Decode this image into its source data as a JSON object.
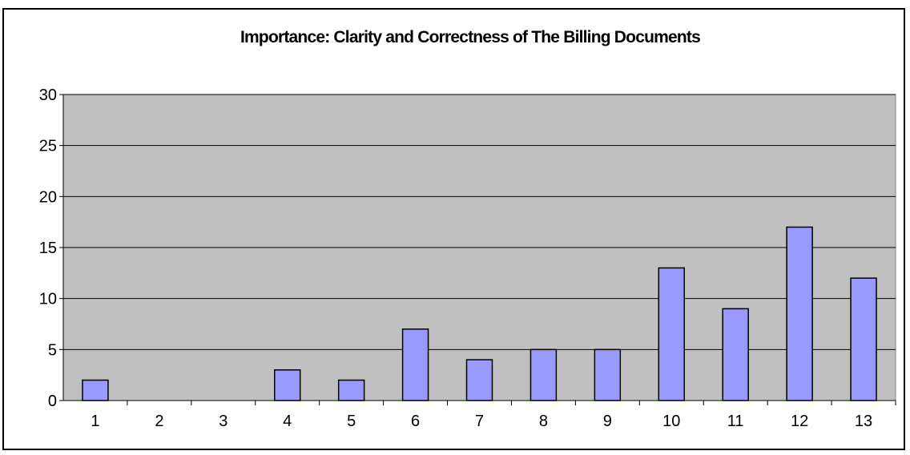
{
  "chart_data": {
    "type": "bar",
    "title": "Importance: Clarity and Correctness of The Billing Documents",
    "xlabel": "",
    "ylabel": "",
    "categories": [
      "1",
      "2",
      "3",
      "4",
      "5",
      "6",
      "7",
      "8",
      "9",
      "10",
      "11",
      "12",
      "13"
    ],
    "values": [
      2,
      0,
      0,
      3,
      2,
      7,
      4,
      5,
      5,
      13,
      9,
      17,
      12
    ],
    "ylim": [
      0,
      30
    ],
    "yticks": [
      "0",
      "5",
      "10",
      "15",
      "20",
      "25",
      "30"
    ],
    "grid": true,
    "legend": "none",
    "colors": {
      "bar_fill": "#9999ff",
      "bar_stroke": "#000000",
      "plot_background": "#c0c0c0",
      "gridline": "#000000",
      "chart_background": "#ffffff"
    }
  }
}
